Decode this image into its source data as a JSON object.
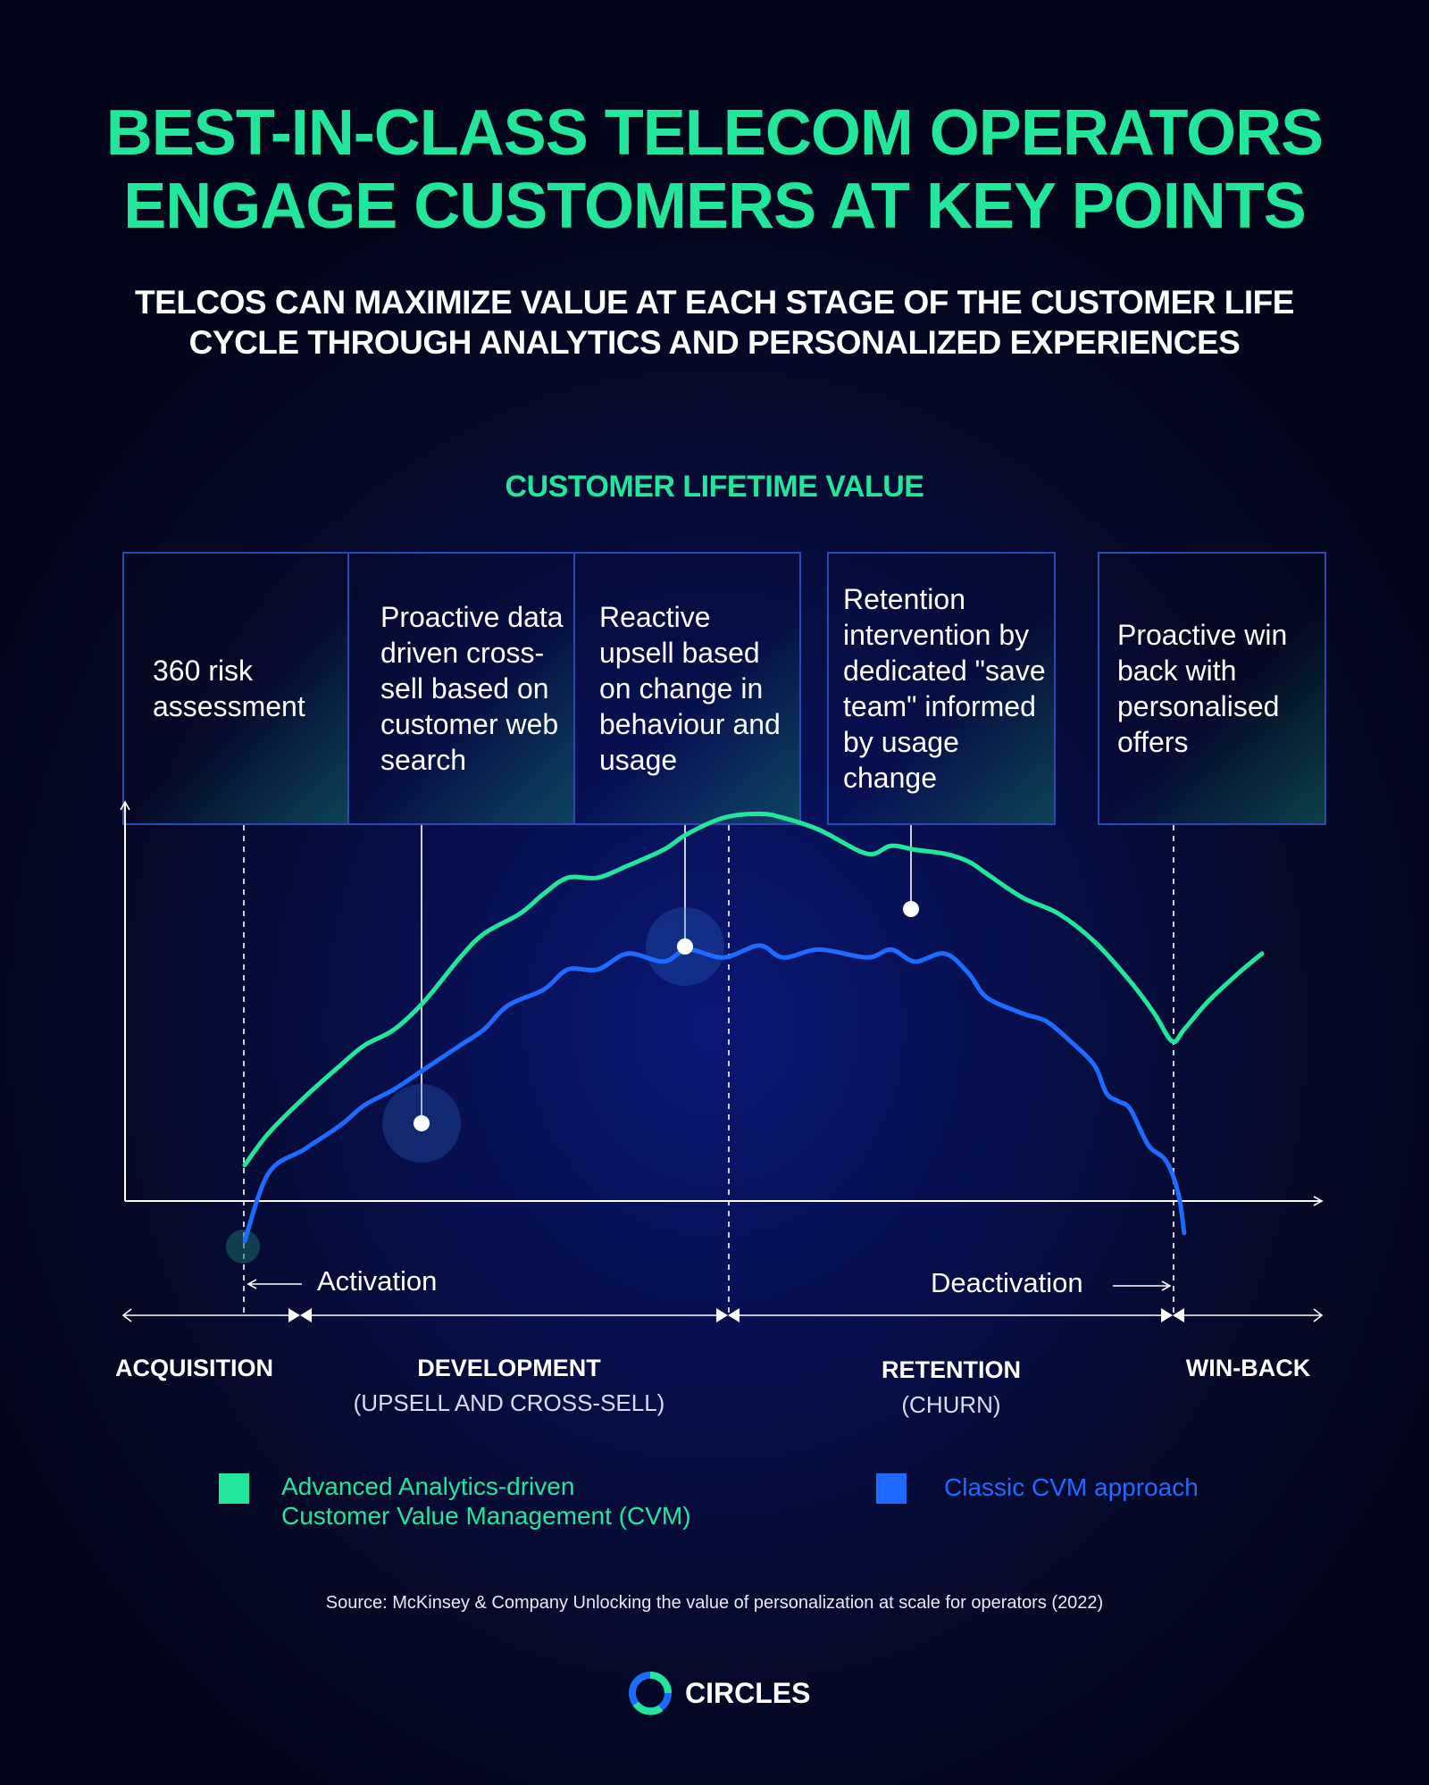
{
  "header": {
    "title_line1": "BEST-IN-CLASS TELECOM OPERATORS",
    "title_line2": "ENGAGE CUSTOMERS AT KEY POINTS",
    "subtitle_line1": "TELCOS CAN MAXIMIZE VALUE AT EACH STAGE OF THE CUSTOMER LIFE",
    "subtitle_line2": "CYCLE THROUGH ANALYTICS AND PERSONALIZED EXPERIENCES"
  },
  "boxes": [
    {
      "text": "360 risk assessment"
    },
    {
      "text": "Proactive data driven cross-sell based on customer web search"
    },
    {
      "text": "Reactive upsell based on change in behaviour and usage"
    },
    {
      "text": "Retention intervention by dedicated \"save team\" informed by usage change"
    },
    {
      "text": "Proactive win back with personalised offers"
    }
  ],
  "phases": {
    "activation": "Activation",
    "deactivation": "Deactivation"
  },
  "stages": [
    {
      "label": "ACQUISITION",
      "sub": ""
    },
    {
      "label": "DEVELOPMENT",
      "sub": "(UPSELL AND CROSS-SELL)"
    },
    {
      "label": "RETENTION",
      "sub": "(CHURN)"
    },
    {
      "label": "WIN-BACK",
      "sub": ""
    }
  ],
  "legend": [
    {
      "line1": "Advanced Analytics-driven",
      "line2": "Customer Value Management (CVM)",
      "color": "#22e69b"
    },
    {
      "line1": "Classic CVM approach",
      "line2": "",
      "color": "#1e6bff"
    }
  ],
  "source": "Source: McKinsey & Company Unlocking the value of personalization at scale for operators (2022)",
  "brand": {
    "name": "CIRCLES"
  },
  "colors": {
    "advanced": "#22e69b",
    "classic": "#1e6bff",
    "title": "#22e69b",
    "box_border": "#2a49b5"
  },
  "chart_data": {
    "type": "line",
    "title": "CUSTOMER LIFETIME VALUE",
    "xlabel": "",
    "ylabel": "",
    "x_stages": [
      "ACQUISITION",
      "DEVELOPMENT",
      "RETENTION",
      "WIN-BACK"
    ],
    "xlim": [
      0,
      100
    ],
    "ylim": [
      -10,
      100
    ],
    "grid": false,
    "legend_position": "bottom",
    "series": [
      {
        "name": "Advanced Analytics-driven Customer Value Management (CVM)",
        "color": "#22e69b",
        "x": [
          10,
          12,
          15,
          18,
          20,
          22.5,
          25,
          28,
          30,
          33,
          35,
          37,
          39.5,
          42,
          45,
          47,
          50,
          53,
          55,
          58,
          62,
          64,
          66,
          68.5,
          70.5,
          72,
          75,
          78,
          81,
          84,
          86,
          87.5,
          88.5,
          90.5,
          93,
          95
        ],
        "y": [
          9,
          17,
          26,
          34,
          39,
          43,
          50,
          61,
          67,
          72,
          77,
          81,
          81,
          84,
          88,
          92,
          96,
          97,
          96,
          93,
          87,
          89,
          88,
          87,
          85,
          82,
          76,
          72,
          65,
          55,
          47,
          40,
          43,
          50,
          57,
          62
        ]
      },
      {
        "name": "Classic CVM approach",
        "color": "#1e6bff",
        "x": [
          10,
          12,
          15,
          18,
          20,
          22.5,
          25,
          28,
          30,
          32,
          35,
          37,
          39.5,
          42,
          45,
          47,
          50,
          53,
          55,
          58,
          62,
          64,
          66,
          68.5,
          70.5,
          72,
          75,
          77,
          79,
          81,
          82,
          83,
          84,
          85.5,
          87,
          88,
          88.5
        ],
        "y": [
          -10,
          7,
          13,
          19,
          24,
          28,
          33,
          39,
          43,
          49,
          53,
          58,
          58,
          62,
          60,
          63,
          61,
          64,
          61,
          63,
          61,
          63,
          60,
          62,
          57,
          51,
          47,
          45,
          40,
          34,
          27,
          25,
          23,
          14,
          10,
          2,
          -8
        ]
      }
    ],
    "annotations": [
      {
        "text": "360 risk assessment",
        "x": 10
      },
      {
        "text": "Proactive data driven cross-sell based on customer web search",
        "x": 25
      },
      {
        "text": "Reactive upsell based on change in behaviour and usage",
        "x": 47
      },
      {
        "text": "Retention intervention by dedicated \"save team\" informed by usage change",
        "x": 66
      },
      {
        "text": "Proactive win back with personalised offers",
        "x": 88.5
      }
    ]
  }
}
